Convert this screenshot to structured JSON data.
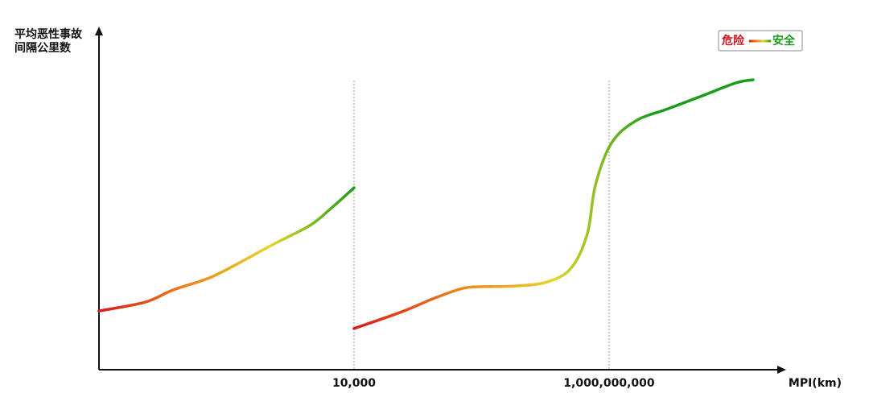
{
  "chart_data": {
    "type": "line",
    "ylabel": [
      "平均恶性事故",
      "间隔公里数"
    ],
    "xlabel": "MPI(km)",
    "xscale": "log",
    "xlim": [
      0.1,
      2750000000000
    ],
    "xticks": [
      {
        "value": 10000,
        "label": "10,000"
      },
      {
        "value": 1000000000,
        "label": "1,000,000,000"
      }
    ],
    "ylim": [
      0,
      100
    ],
    "grid": true,
    "legend": {
      "position": "top-right",
      "low": "危险",
      "high": "安全",
      "low_color": "#c8161d",
      "high_color": "#1a9a1a",
      "colors": [
        "#d7191c",
        "#ec7f1a",
        "#e6d52c",
        "#1a9e1a"
      ]
    },
    "series": [
      {
        "colors": [
          "#d7191c",
          "#ec7f1a",
          "#e6d52c",
          "#1a9e1a"
        ],
        "x": [
          0.1,
          0.8,
          2.8,
          14.5,
          62,
          265,
          1350,
          3360,
          10000
        ],
        "values": [
          17.4,
          20,
          23.6,
          27.2,
          32,
          37.2,
          42.7,
          47.5,
          53.9
        ]
      },
      {
        "colors": [
          "#d7191c",
          "#ec7f1a",
          "#e6d52c",
          "#1a9e1a",
          "#1a9e1a"
        ],
        "x": [
          10000,
          88000,
          378000,
          1350000,
          3340000,
          14300000,
          61000000,
          180000000,
          375000000,
          540000000,
          1110000000,
          3300000000,
          14200000000,
          60500000000,
          310000000000,
          665000000000
        ],
        "values": [
          12.2,
          17.2,
          21.2,
          24.1,
          24.6,
          24.8,
          26,
          30.1,
          40.3,
          54.7,
          67.1,
          73.7,
          77.3,
          80.9,
          85,
          85.9
        ]
      }
    ]
  }
}
